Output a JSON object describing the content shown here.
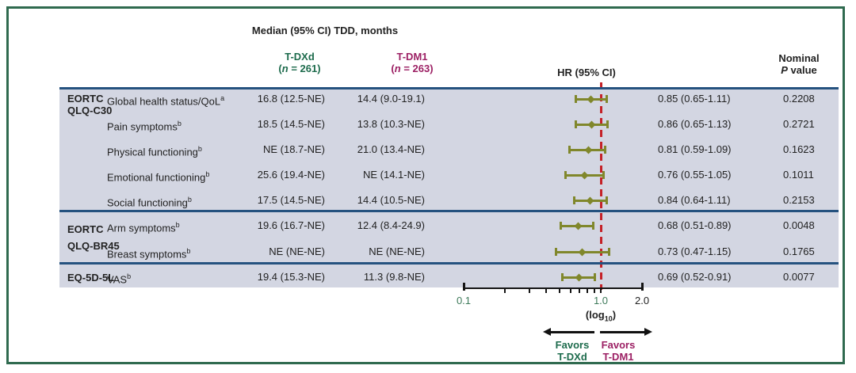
{
  "header": {
    "title": "Median (95% CI) TDD, months",
    "tdxd": {
      "name": "T-DXd",
      "n_prefix": "(",
      "n_italic": "n",
      "n_suffix": " = 261)",
      "color": "#1d6b4c"
    },
    "tdm1": {
      "name": "T-DM1",
      "n_prefix": "(",
      "n_italic": "n",
      "n_suffix": " = 263)",
      "color": "#9c2064"
    },
    "hr": "HR (95% CI)",
    "p_line1": "Nominal",
    "p_italic": "P",
    "p_suffix": " value"
  },
  "sections": [
    {
      "group_lines": [
        "EORTC",
        "QLQ-C30"
      ],
      "rows": [
        {
          "label": "Global health status/QoL",
          "sup": "a",
          "tdxd": "16.8 (12.5-NE)",
          "tdm1": "14.4 (9.0-19.1)",
          "hr": 0.85,
          "ci_low": 0.65,
          "ci_high": 1.11,
          "hr_text": "0.85 (0.65-1.11)",
          "p": "0.2208"
        },
        {
          "label": "Pain symptoms",
          "sup": "b",
          "tdxd": "18.5 (14.5-NE)",
          "tdm1": "13.8 (10.3-NE)",
          "hr": 0.86,
          "ci_low": 0.65,
          "ci_high": 1.13,
          "hr_text": "0.86 (0.65-1.13)",
          "p": "0.2721"
        },
        {
          "label": "Physical functioning",
          "sup": "b",
          "tdxd": "NE (18.7-NE)",
          "tdm1": "21.0 (13.4-NE)",
          "hr": 0.81,
          "ci_low": 0.59,
          "ci_high": 1.09,
          "hr_text": "0.81 (0.59-1.09)",
          "p": "0.1623"
        },
        {
          "label": "Emotional functioning",
          "sup": "b",
          "tdxd": "25.6 (19.4-NE)",
          "tdm1": "NE (14.1-NE)",
          "hr": 0.76,
          "ci_low": 0.55,
          "ci_high": 1.05,
          "hr_text": "0.76 (0.55-1.05)",
          "p": "0.1011"
        },
        {
          "label": "Social functioning",
          "sup": "b",
          "tdxd": "17.5 (14.5-NE)",
          "tdm1": "14.4 (10.5-NE)",
          "hr": 0.84,
          "ci_low": 0.64,
          "ci_high": 1.11,
          "hr_text": "0.84 (0.64-1.11)",
          "p": "0.2153"
        }
      ]
    },
    {
      "group_lines": [
        "EORTC",
        "QLQ-BR45"
      ],
      "rows": [
        {
          "label": "Arm symptoms",
          "sup": "b",
          "tdxd": "19.6 (16.7-NE)",
          "tdm1": "12.4 (8.4-24.9)",
          "hr": 0.68,
          "ci_low": 0.51,
          "ci_high": 0.89,
          "hr_text": "0.68 (0.51-0.89)",
          "p": "0.0048"
        },
        {
          "label": "Breast symptoms",
          "sup": "b",
          "tdxd": "NE (NE-NE)",
          "tdm1": "NE (NE-NE)",
          "hr": 0.73,
          "ci_low": 0.47,
          "ci_high": 1.15,
          "hr_text": "0.73 (0.47-1.15)",
          "p": "0.1765"
        }
      ]
    },
    {
      "group_lines": [
        "EQ-5D-5L"
      ],
      "rows": [
        {
          "label": "VAS",
          "sup": "b",
          "tdxd": "19.4 (15.3-NE)",
          "tdm1": "11.3 (9.8-NE)",
          "hr": 0.69,
          "ci_low": 0.52,
          "ci_high": 0.91,
          "hr_text": "0.69 (0.52-0.91)",
          "p": "0.0077"
        }
      ]
    }
  ],
  "axis": {
    "min": 0.1,
    "max": 2.0,
    "reference_line": 1.0,
    "minor_ticks": [
      0.2,
      0.3,
      0.4,
      0.5,
      0.6,
      0.7,
      0.8,
      0.9,
      1.0
    ],
    "end_ticks": [
      0.1,
      2.0
    ],
    "tick_labels": [
      {
        "value": 0.1,
        "label": "0.1",
        "color": "green"
      },
      {
        "value": 1.0,
        "label": "1.0",
        "color": "green"
      },
      {
        "value": 2.0,
        "label": "2.0",
        "color": "black"
      }
    ],
    "scale_prefix": "(log",
    "scale_sub": "10",
    "scale_suffix": ")"
  },
  "footer": {
    "left": {
      "line1": "Favors",
      "line2": "T-DXd"
    },
    "right": {
      "line1": "Favors",
      "line2": "T-DM1"
    }
  },
  "colors": {
    "tdxd_green": "#1d6b4c",
    "tdm1_magenta": "#9c2064",
    "band": "#d3d6e2",
    "navy_rule": "#25527f",
    "marker_olive": "#80872b",
    "reference_red": "#c52127",
    "frame_green": "#2f6a4f",
    "axis_label_green": "#3e7a5a",
    "text": "#222222"
  },
  "chart_data": {
    "type": "scatter",
    "subtype": "forest-plot",
    "title": "Median (95% CI) TDD, months",
    "x_scale": "log10",
    "x_range": [
      0.1,
      2.0
    ],
    "x_tick_labels": [
      "0.1",
      "1.0",
      "2.0"
    ],
    "xlabel": "(log10)",
    "reference_line_x": 1.0,
    "legend": [
      "T-DXd (n = 261)",
      "T-DM1 (n = 263)"
    ],
    "points": [
      {
        "label": "Global health status/QoL",
        "hr": 0.85,
        "ci": [
          0.65,
          1.11
        ],
        "p": 0.2208
      },
      {
        "label": "Pain symptoms",
        "hr": 0.86,
        "ci": [
          0.65,
          1.13
        ],
        "p": 0.2721
      },
      {
        "label": "Physical functioning",
        "hr": 0.81,
        "ci": [
          0.59,
          1.09
        ],
        "p": 0.1623
      },
      {
        "label": "Emotional functioning",
        "hr": 0.76,
        "ci": [
          0.55,
          1.05
        ],
        "p": 0.1011
      },
      {
        "label": "Social functioning",
        "hr": 0.84,
        "ci": [
          0.64,
          1.11
        ],
        "p": 0.2153
      },
      {
        "label": "Arm symptoms",
        "hr": 0.68,
        "ci": [
          0.51,
          0.89
        ],
        "p": 0.0048
      },
      {
        "label": "Breast symptoms",
        "hr": 0.73,
        "ci": [
          0.47,
          1.15
        ],
        "p": 0.1765
      },
      {
        "label": "VAS",
        "hr": 0.69,
        "ci": [
          0.52,
          0.91
        ],
        "p": 0.0077
      }
    ]
  }
}
